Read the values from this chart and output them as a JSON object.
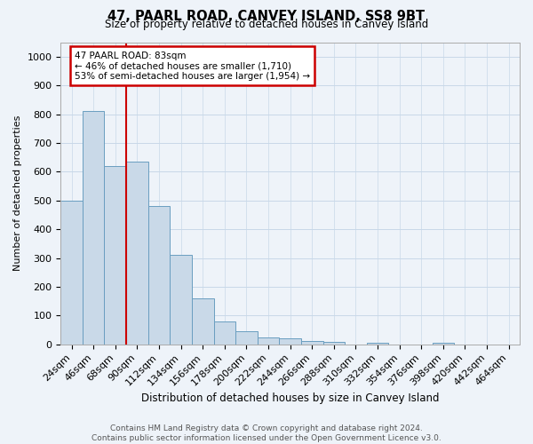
{
  "title": "47, PAARL ROAD, CANVEY ISLAND, SS8 9BT",
  "subtitle": "Size of property relative to detached houses in Canvey Island",
  "xlabel": "Distribution of detached houses by size in Canvey Island",
  "ylabel": "Number of detached properties",
  "bar_values": [
    500,
    810,
    620,
    635,
    480,
    310,
    160,
    80,
    45,
    25,
    20,
    12,
    8,
    0,
    6,
    0,
    0,
    5,
    0,
    0,
    0
  ],
  "bin_labels": [
    "24sqm",
    "46sqm",
    "68sqm",
    "90sqm",
    "112sqm",
    "134sqm",
    "156sqm",
    "178sqm",
    "200sqm",
    "222sqm",
    "244sqm",
    "266sqm",
    "288sqm",
    "310sqm",
    "332sqm",
    "354sqm",
    "376sqm",
    "398sqm",
    "420sqm",
    "442sqm",
    "464sqm"
  ],
  "bar_color": "#c9d9e8",
  "bar_edge_color": "#6a9ec0",
  "grid_color": "#c8d8e8",
  "vline_color": "#cc0000",
  "vline_pos": 2.5,
  "annotation_text": "47 PAARL ROAD: 83sqm\n← 46% of detached houses are smaller (1,710)\n53% of semi-detached houses are larger (1,954) →",
  "annotation_box_color": "#ffffff",
  "annotation_box_edge": "#cc0000",
  "footer_text": "Contains HM Land Registry data © Crown copyright and database right 2024.\nContains public sector information licensed under the Open Government Licence v3.0.",
  "ylim": [
    0,
    1050
  ],
  "yticks": [
    0,
    100,
    200,
    300,
    400,
    500,
    600,
    700,
    800,
    900,
    1000
  ],
  "bg_color": "#eef3f9"
}
